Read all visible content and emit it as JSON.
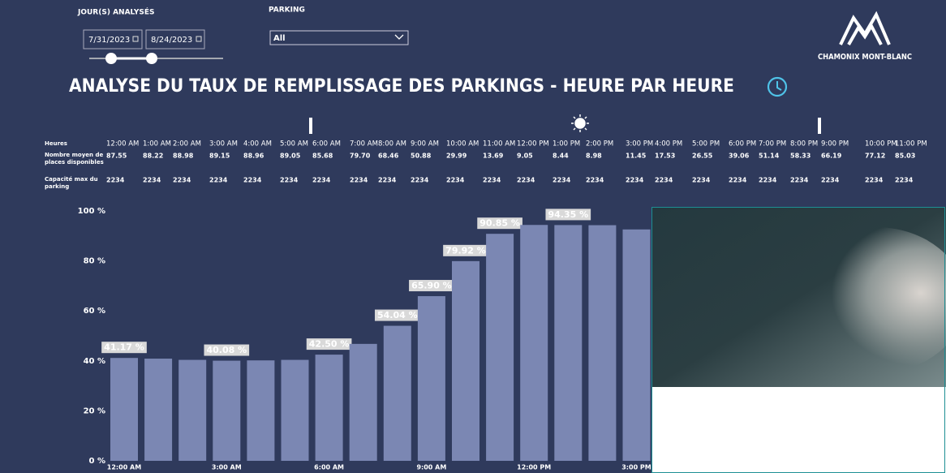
{
  "filters": {
    "days": {
      "label": "JOUR(S) ANALYSÉS",
      "start": "7/31/2023",
      "end": "8/24/2023"
    },
    "parking": {
      "label": "PARKING",
      "value": "All"
    }
  },
  "logo": "CHAMONIX MONT-BLANC",
  "title": "ANALYSE DU TAUX DE REMPLISSAGE DES PARKINGS - HEURE PAR HEURE",
  "table": {
    "row_headers": [
      [
        "Heures"
      ],
      [
        "Nombre moyen de",
        "places disponibles"
      ],
      [
        "Capacité max du",
        "parking"
      ]
    ],
    "hours": [
      "12:00 AM",
      "1:00 AM",
      "2:00 AM",
      "3:00 AM",
      "4:00 AM",
      "5:00 AM",
      "6:00 AM",
      "7:00 AM",
      "8:00 AM",
      "9:00 AM",
      "10:00 AM",
      "11:00 AM",
      "12:00 PM",
      "1:00 PM",
      "2:00 PM",
      "3:00 PM",
      "4:00 PM",
      "5:00 PM",
      "6:00 PM",
      "7:00 PM",
      "8:00 PM",
      "9:00 PM",
      "10:00 PM",
      "11:00 PM"
    ],
    "available": [
      "87.55",
      "88.22",
      "88.98",
      "89.15",
      "88.96",
      "89.05",
      "85.68",
      "79.70",
      "68.46",
      "50.88",
      "29.99",
      "13.69",
      "9.05",
      "8.44",
      "8.98",
      "11.45",
      "17.53",
      "26.55",
      "39.06",
      "51.14",
      "58.33",
      "66.19",
      "77.12",
      "85.03"
    ],
    "capacity": [
      "2234",
      "2234",
      "2234",
      "2234",
      "2234",
      "2234",
      "2234",
      "2234",
      "2234",
      "2234",
      "2234",
      "2234",
      "2234",
      "2234",
      "2234",
      "2234",
      "2234",
      "2234",
      "2234",
      "2234",
      "2234",
      "2234",
      "2234",
      "2234"
    ]
  },
  "chart_data": {
    "type": "bar",
    "categories": [
      "12:00 AM",
      null,
      null,
      "3:00 AM",
      null,
      null,
      "6:00 AM",
      null,
      null,
      "9:00 AM",
      null,
      null,
      "12:00 PM",
      null,
      null,
      "3:00 PM"
    ],
    "values": [
      41.17,
      40.9,
      40.4,
      40.08,
      40.2,
      40.4,
      42.5,
      46.8,
      54.04,
      65.9,
      79.92,
      90.85,
      94.4,
      94.35,
      94.3,
      92.6
    ],
    "value_labels": [
      "41.17 %",
      null,
      null,
      "40.08 %",
      null,
      null,
      "42.50 %",
      null,
      "54.04 %",
      "65.90 %",
      "79.92 %",
      "90.85 %",
      null,
      "94.35 %",
      null,
      null
    ],
    "value_label_colors": [
      "#1e9e1e",
      null,
      null,
      "#1e9e1e",
      null,
      null,
      "#1e9e1e",
      null,
      "#f07a3a",
      "#f07a3a",
      "#c8102e",
      "#c8102e",
      null,
      "#c8102e",
      null,
      null
    ],
    "color": "#7b87b3",
    "ylim": [
      0,
      100
    ],
    "yticks": [
      {
        "value": 0,
        "label": "0 %"
      },
      {
        "value": 20,
        "label": "20 %"
      },
      {
        "value": 40,
        "label": "40 %"
      },
      {
        "value": 60,
        "label": "60 %"
      },
      {
        "value": 80,
        "label": "80 %"
      },
      {
        "value": 100,
        "label": "100 %"
      }
    ],
    "grid": false
  }
}
